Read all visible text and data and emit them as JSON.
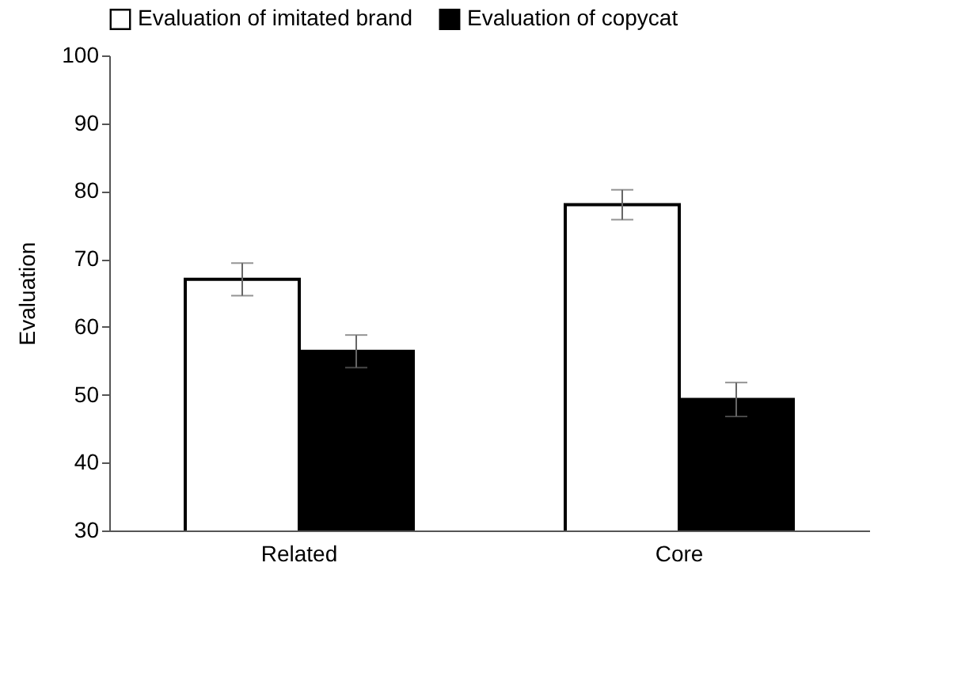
{
  "chart_data": {
    "type": "bar",
    "ylabel": "Evaluation",
    "categories": [
      "Related",
      "Core"
    ],
    "series": [
      {
        "name": "Evaluation of imitated brand",
        "color": "#ffffff",
        "values": [
          67.0,
          78.0
        ],
        "errors": [
          2.4,
          2.2
        ]
      },
      {
        "name": "Evaluation of copycat",
        "color": "#000000",
        "values": [
          56.4,
          49.3
        ],
        "errors": [
          2.4,
          2.5
        ]
      }
    ],
    "ylim": [
      30,
      100
    ],
    "yticks": [
      30,
      40,
      50,
      60,
      70,
      80,
      90,
      100
    ],
    "grid": false,
    "legend": "top"
  }
}
